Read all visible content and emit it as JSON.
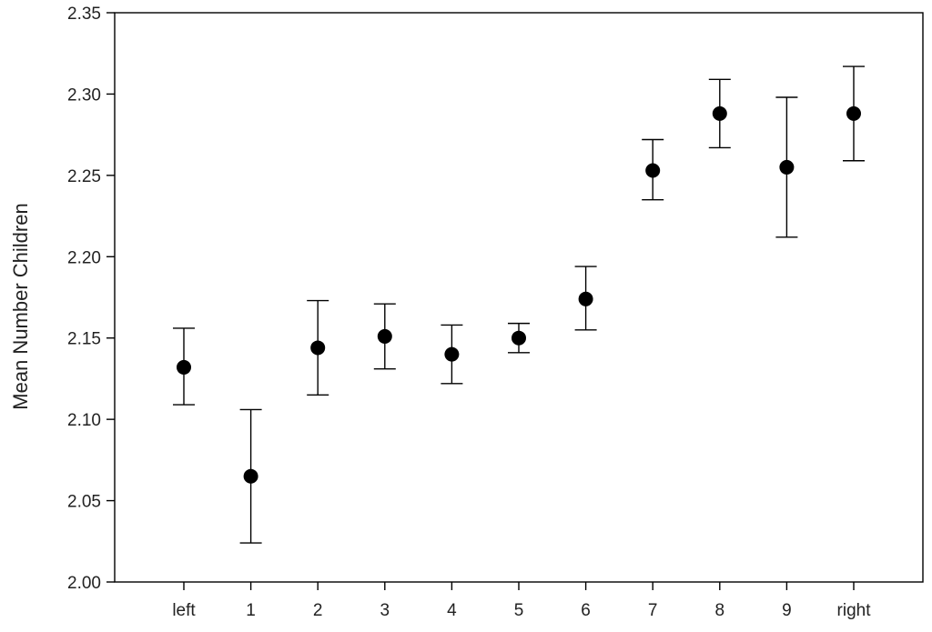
{
  "chart_data": {
    "type": "scatter",
    "title": "",
    "xlabel": "",
    "ylabel": "Mean Number Children",
    "categories": [
      "left",
      "1",
      "2",
      "3",
      "4",
      "5",
      "6",
      "7",
      "8",
      "9",
      "right"
    ],
    "series": [
      {
        "values": [
          2.132,
          2.065,
          2.144,
          2.151,
          2.14,
          2.15,
          2.174,
          2.253,
          2.288,
          2.255,
          2.288
        ],
        "error_lower": [
          2.109,
          2.024,
          2.115,
          2.131,
          2.122,
          2.141,
          2.155,
          2.235,
          2.267,
          2.212,
          2.259
        ],
        "error_upper": [
          2.156,
          2.106,
          2.173,
          2.171,
          2.158,
          2.159,
          2.194,
          2.272,
          2.309,
          2.298,
          2.317
        ]
      }
    ],
    "ylim": [
      2.0,
      2.35
    ],
    "yticks": [
      "2.00",
      "2.05",
      "2.10",
      "2.15",
      "2.20",
      "2.25",
      "2.30",
      "2.35"
    ],
    "grid": false,
    "legend": "none",
    "marker_color": "#000000"
  }
}
